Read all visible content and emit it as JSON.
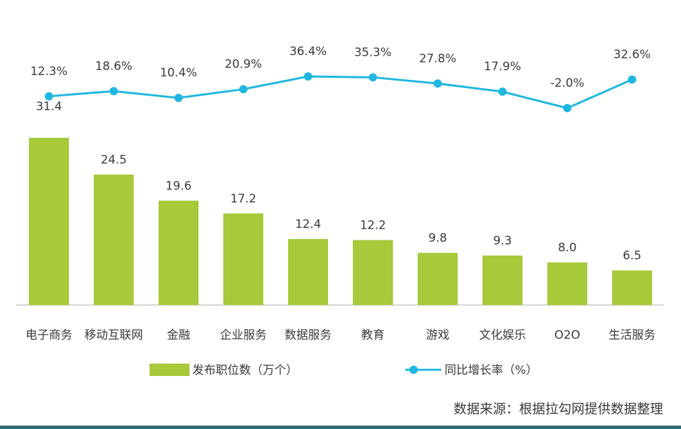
{
  "chart_data": {
    "type": "bar",
    "categories": [
      "电子商务",
      "移动互联网",
      "金融",
      "企业服务",
      "数据服务",
      "教育",
      "游戏",
      "文化娱乐",
      "O2O",
      "生活服务"
    ],
    "series": [
      {
        "name": "发布职位数（万个）",
        "type": "bar",
        "values": [
          31.4,
          24.5,
          19.6,
          17.2,
          12.4,
          12.2,
          9.8,
          9.3,
          8.0,
          6.5
        ],
        "labels": [
          "31.4",
          "24.5",
          "19.6",
          "17.2",
          "12.4",
          "12.2",
          "9.8",
          "9.3",
          "8.0",
          "6.5"
        ],
        "color": "#a7c93a"
      },
      {
        "name": "同比增长率（%）",
        "type": "line",
        "values": [
          12.3,
          18.6,
          10.4,
          20.9,
          36.4,
          35.3,
          27.8,
          17.9,
          -2.0,
          32.6
        ],
        "labels": [
          "12.3%",
          "18.6%",
          "10.4%",
          "20.9%",
          "36.4%",
          "35.3%",
          "27.8%",
          "17.9%",
          "-2.0%",
          "32.6%"
        ],
        "color": "#1fb7e0"
      }
    ],
    "bar_ylim": [
      0,
      34
    ],
    "line_ylim": [
      -2,
      36.4
    ],
    "legend_position": "bottom",
    "grid": false
  },
  "legend": {
    "bar_label": "发布职位数（万个）",
    "line_label": "同比增长率（%）"
  },
  "source_note": "数据来源：根据拉勾网提供数据整理",
  "colors": {
    "bar": "#a7c93a",
    "line": "#1fb7e0",
    "axis": "#c8c8c8",
    "bottom_band": "#2f6b73"
  }
}
